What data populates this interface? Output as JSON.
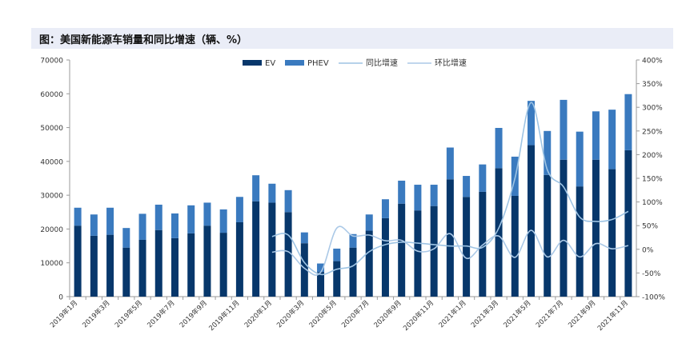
{
  "figure": {
    "title": "图：美国新能源车销量和同比增速（辆、%）"
  },
  "colors": {
    "ev": "#07376b",
    "phev": "#3a7abf",
    "yoy": "#9ec4e4",
    "mom": "#abc9e7",
    "axis": "#9a9a9a",
    "text": "#333333"
  },
  "chart_data": {
    "type": "bar",
    "title": "图：美国新能源车销量和同比增速（辆、%）",
    "xlabel": "",
    "ylabel": "",
    "ylim": [
      0,
      70000
    ],
    "y2lim": [
      -100,
      400
    ],
    "yticks": [
      "0",
      "10000",
      "20000",
      "30000",
      "40000",
      "50000",
      "60000",
      "70000"
    ],
    "y2ticks": [
      "-100%",
      "-50%",
      "0%",
      "50%",
      "100%",
      "150%",
      "200%",
      "250%",
      "300%",
      "350%",
      "400%"
    ],
    "legend": {
      "placement": "top-center",
      "labels": [
        "EV",
        "PHEV",
        "同比增速",
        "环比增速"
      ]
    },
    "categories": [
      "2019年1月",
      "2019年2月",
      "2019年3月",
      "2019年4月",
      "2019年5月",
      "2019年6月",
      "2019年7月",
      "2019年8月",
      "2019年9月",
      "2019年10月",
      "2019年11月",
      "2019年12月",
      "2020年1月",
      "2020年2月",
      "2020年3月",
      "2020年4月",
      "2020年5月",
      "2020年6月",
      "2020年7月",
      "2020年8月",
      "2020年9月",
      "2020年10月",
      "2020年11月",
      "2020年12月",
      "2021年1月",
      "2021年2月",
      "2021年3月",
      "2021年4月",
      "2021年5月",
      "2021年6月",
      "2021年7月",
      "2021年8月",
      "2021年9月",
      "2021年10月",
      "2021年11月"
    ],
    "series": [
      {
        "name": "EV",
        "kind": "bar",
        "axis": "left",
        "values": [
          21000,
          18000,
          18300,
          14500,
          16800,
          19700,
          17300,
          18700,
          21000,
          18900,
          22000,
          28200,
          27800,
          25000,
          15800,
          7300,
          10500,
          14500,
          19500,
          23200,
          27500,
          25500,
          26800,
          34700,
          29500,
          31000,
          38000,
          29800,
          44800,
          36000,
          40500,
          32600,
          40500,
          37700,
          43300
        ]
      },
      {
        "name": "PHEV",
        "kind": "bar",
        "axis": "left",
        "values": [
          5300,
          6300,
          8000,
          5800,
          7700,
          7500,
          7300,
          8300,
          6800,
          6900,
          7500,
          7700,
          5600,
          6500,
          3200,
          2500,
          3700,
          4000,
          4800,
          5600,
          6800,
          7600,
          6300,
          9400,
          6200,
          8100,
          11900,
          11600,
          13100,
          13000,
          17700,
          16200,
          14300,
          17600,
          16600
        ]
      },
      {
        "name": "同比增速",
        "kind": "line",
        "axis": "right",
        "values": [
          null,
          null,
          null,
          null,
          null,
          null,
          null,
          null,
          null,
          null,
          null,
          null,
          27,
          30,
          -28,
          -53,
          -42,
          -35,
          -5,
          10,
          15,
          13,
          10,
          7,
          7,
          4,
          45,
          150,
          310,
          168,
          132,
          68,
          59,
          63,
          80
        ]
      },
      {
        "name": "环比增速",
        "kind": "line",
        "axis": "right",
        "values": [
          null,
          null,
          null,
          null,
          null,
          null,
          null,
          null,
          null,
          null,
          null,
          null,
          -6,
          -5,
          -40,
          -49,
          45,
          28,
          30,
          18,
          19,
          -4,
          1,
          33,
          -19,
          9,
          28,
          -17,
          40,
          -16,
          19,
          -16,
          12,
          1,
          8
        ]
      }
    ]
  }
}
